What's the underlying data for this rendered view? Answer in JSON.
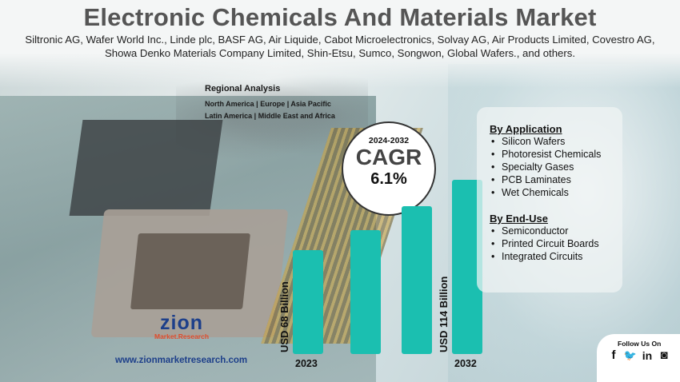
{
  "title": "Electronic Chemicals And Materials Market",
  "companies": "Siltronic AG, Wafer World Inc., Linde plc, BASF AG, Air Liquide, Cabot Microelectronics, Solvay AG, Air Products Limited, Covestro AG, Showa Denko Materials Company Limited, Shin-Etsu, Sumco, Songwon, Global Wafers., and others.",
  "regional": {
    "heading": "Regional Analysis",
    "line1": "North America | Europe | Asia Pacific",
    "line2": "Latin America | Middle East and Africa"
  },
  "cagr": {
    "period": "2024-2032",
    "label": "CAGR",
    "value": "6.1%"
  },
  "chart_data": {
    "type": "bar",
    "categories": [
      "2023",
      "",
      "",
      "2032"
    ],
    "values": [
      68,
      81,
      97,
      114
    ],
    "value_labels": [
      "USD 68 Billion",
      "",
      "",
      "USD 114 Billion"
    ],
    "bar_color": "#1bbfb0",
    "title": "",
    "xlabel": "",
    "ylabel": "",
    "ylim": [
      0,
      114
    ],
    "grid": false
  },
  "segments": {
    "application": {
      "heading": "By Application",
      "items": [
        "Silicon Wafers",
        "Photoresist Chemicals",
        "Specialty Gases",
        "PCB Laminates",
        "Wet Chemicals"
      ]
    },
    "end_use": {
      "heading": "By End-Use",
      "items": [
        "Semiconductor",
        "Printed Circuit Boards",
        "Integrated Circuits"
      ]
    }
  },
  "brand": {
    "logo_main": "zion",
    "logo_sub": "Market.Research",
    "website": "www.zionmarketresearch.com"
  },
  "social": {
    "label": "Follow Us On",
    "icons": [
      "facebook-icon",
      "twitter-icon",
      "linkedin-icon",
      "instagram-icon"
    ],
    "glyphs": [
      "f",
      "🐦",
      "in",
      "◙"
    ]
  }
}
